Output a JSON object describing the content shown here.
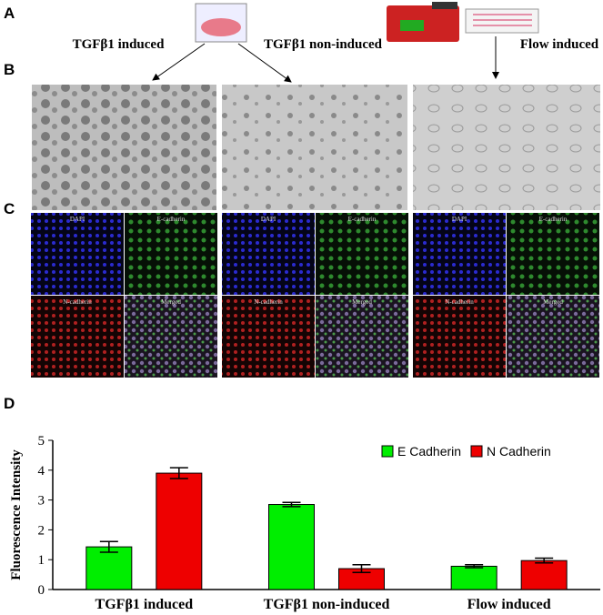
{
  "panels": {
    "a": "A",
    "b": "B",
    "c": "C",
    "d": "D"
  },
  "conditions": [
    "TGFβ1 induced",
    "TGFβ1 non-induced",
    "Flow induced"
  ],
  "stain_labels": [
    "DAPI",
    "E-cadherin",
    "N-cadherin",
    "Merged"
  ],
  "chart_data": {
    "type": "bar",
    "y_label": "Fluorescence Intensity",
    "categories": [
      "TGFβ1 induced",
      "TGFβ1 non-induced",
      "Flow induced"
    ],
    "series": [
      {
        "name": "E Cadherin",
        "color": "#00ee00",
        "values": [
          1.43,
          2.85,
          0.78
        ],
        "errors": [
          0.18,
          0.07,
          0.05
        ]
      },
      {
        "name": "N Cadherin",
        "color": "#ee0000",
        "values": [
          3.9,
          0.7,
          0.97
        ],
        "errors": [
          0.18,
          0.13,
          0.08
        ]
      }
    ],
    "ylim": [
      0,
      5
    ],
    "yticks": [
      0,
      1,
      2,
      3,
      4,
      5
    ],
    "legend": "upper right"
  }
}
